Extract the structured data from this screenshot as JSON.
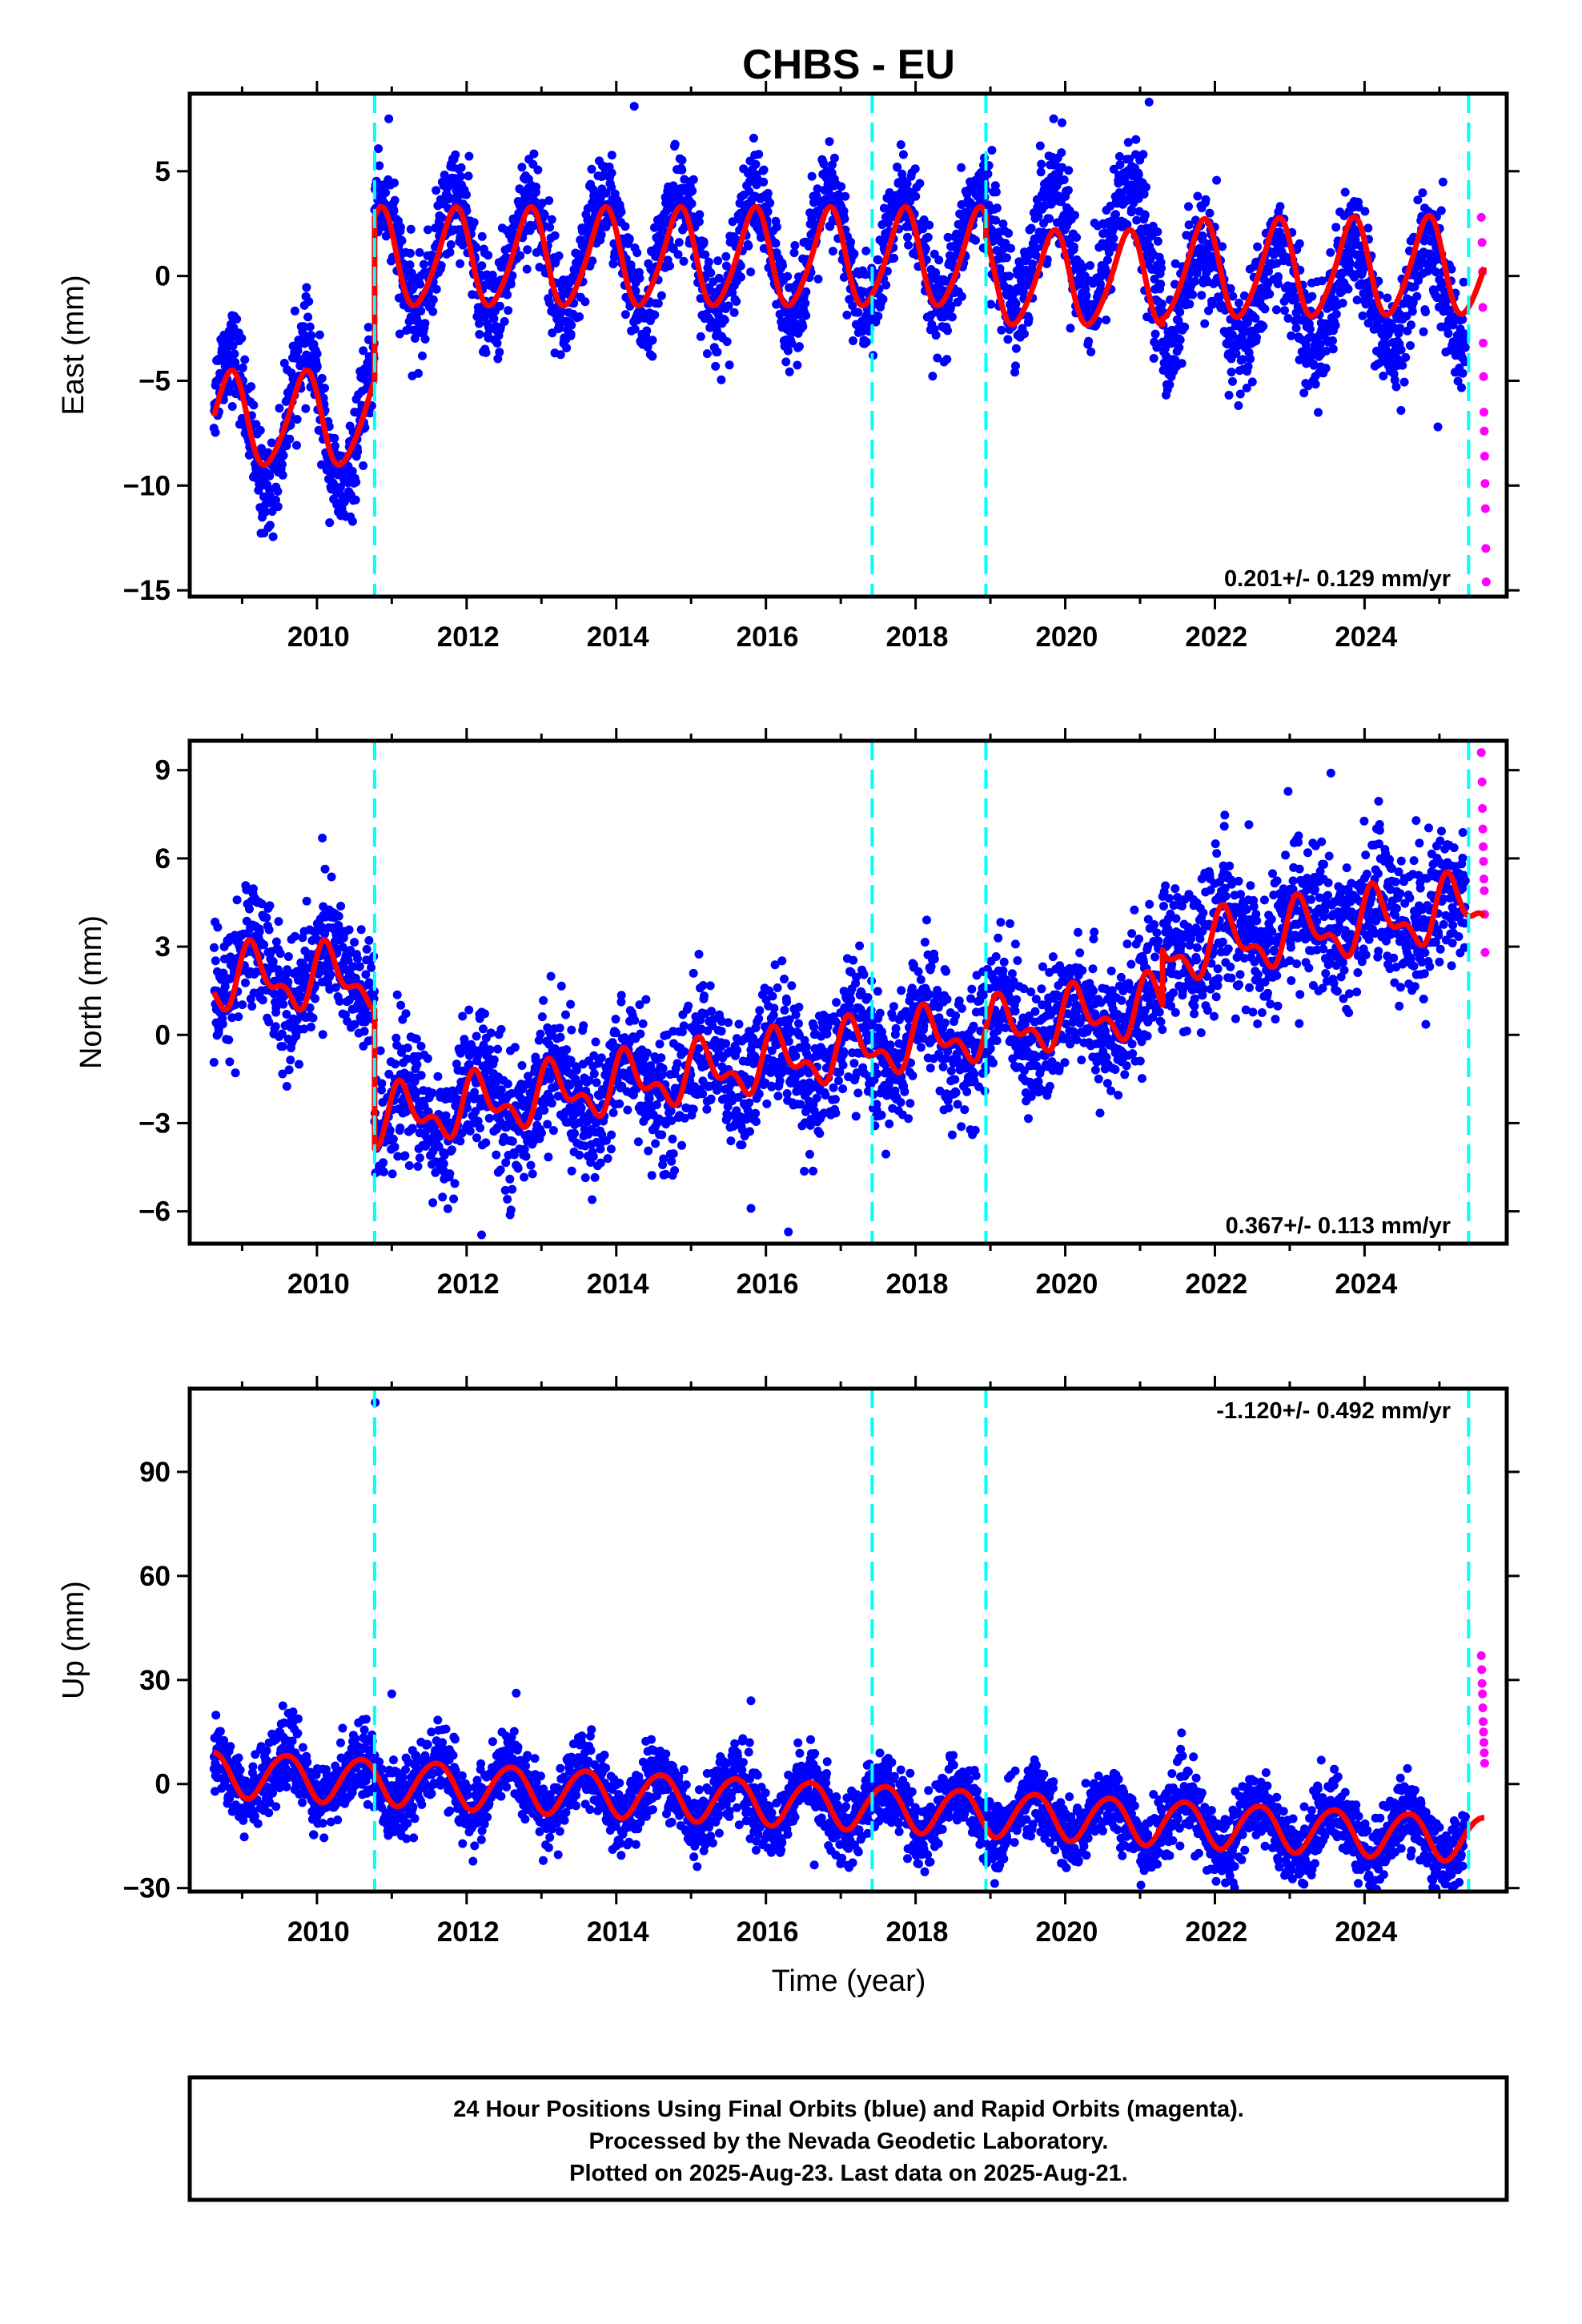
{
  "title": "CHBS - EU",
  "xlabel": "Time (year)",
  "caption": {
    "line1": "24 Hour Positions Using Final Orbits (blue) and Rapid Orbits (magenta).",
    "line2": "Processed by the Nevada Geodetic Laboratory.",
    "line3": "Plotted on 2025-Aug-23. Last data on 2025-Aug-21."
  },
  "colors": {
    "final_orbits": "#0000ff",
    "rapid_orbits": "#ff00ff",
    "model_fit": "#ff0000",
    "equipment_change": "#00ffff",
    "frame": "#000000"
  },
  "chart_data": [
    {
      "type": "scatter",
      "name": "east",
      "ylabel": "East (mm)",
      "xlim": [
        2008.3,
        2025.9
      ],
      "ylim": [
        -15.3,
        8.7
      ],
      "yticks": [
        -15,
        -10,
        -5,
        0,
        5
      ],
      "yticklabels": [
        "−15",
        "−10",
        "−5",
        "0",
        "5"
      ],
      "xticks": [
        2010,
        2012,
        2014,
        2016,
        2018,
        2020,
        2022,
        2024
      ],
      "rate_label": "0.201+/- 0.129 mm/yr",
      "rate_position": "bottom-right",
      "steps": [
        2010.77,
        2017.42,
        2018.94,
        2025.39
      ],
      "fit_segments": [
        {
          "t0": 2008.62,
          "t1": 2010.77,
          "offset": -6.9,
          "amp": 2.2,
          "phase": 2.6,
          "trend": 0.0,
          "semi": 0.3
        },
        {
          "t0": 2010.77,
          "t1": 2018.94,
          "offset": 0.8,
          "amp": 2.3,
          "phase": 2.6,
          "trend": 0.0,
          "semi": 0.3
        },
        {
          "t0": 2018.94,
          "t1": 2021.3,
          "offset": -0.2,
          "amp": 2.2,
          "phase": 2.6,
          "trend": 0.0,
          "semi": 0.3
        },
        {
          "t0": 2021.3,
          "t1": 2025.6,
          "offset": 0.2,
          "amp": 2.3,
          "phase": 2.6,
          "trend": 0.05,
          "semi": 0.3
        }
      ],
      "clusters": [
        {
          "t0": 2008.62,
          "t1": 2010.77,
          "base": -6.9,
          "amp": 3.4,
          "phase": 2.6,
          "spread": 1.1
        },
        {
          "t0": 2010.77,
          "t1": 2018.94,
          "base": 1.0,
          "amp": 2.8,
          "phase": 2.6,
          "spread": 1.2
        },
        {
          "t0": 2018.94,
          "t1": 2021.3,
          "base": 1.6,
          "amp": 2.8,
          "phase": 2.6,
          "spread": 1.3
        },
        {
          "t0": 2021.3,
          "t1": 2025.35,
          "base": -1.0,
          "amp": 2.4,
          "phase": 2.6,
          "spread": 1.3
        }
      ],
      "rapid_points": [
        [
          2025.56,
          2.8
        ],
        [
          2025.57,
          1.6
        ],
        [
          2025.575,
          0.2
        ],
        [
          2025.58,
          -1.5
        ],
        [
          2025.585,
          -3.2
        ],
        [
          2025.59,
          -4.8
        ],
        [
          2025.595,
          -6.5
        ],
        [
          2025.6,
          -7.4
        ],
        [
          2025.605,
          -8.6
        ],
        [
          2025.61,
          -9.9
        ],
        [
          2025.615,
          -11.1
        ],
        [
          2025.62,
          -13.0
        ],
        [
          2025.625,
          -14.6
        ]
      ],
      "outliers": [
        [
          2010.96,
          7.5
        ],
        [
          2014.24,
          8.1
        ],
        [
          2021.12,
          8.3
        ],
        [
          2024.98,
          -7.2
        ]
      ]
    },
    {
      "type": "scatter",
      "name": "north",
      "ylabel": "North (mm)",
      "xlim": [
        2008.3,
        2025.9
      ],
      "ylim": [
        -7.1,
        10.0
      ],
      "yticks": [
        -6,
        -3,
        0,
        3,
        6,
        9
      ],
      "yticklabels": [
        "−6",
        "−3",
        "0",
        "3",
        "6",
        "9"
      ],
      "xticks": [
        2010,
        2012,
        2014,
        2016,
        2018,
        2020,
        2022,
        2024
      ],
      "rate_label": "0.367+/- 0.113 mm/yr",
      "rate_position": "bottom-right",
      "steps": [
        2010.77,
        2017.42,
        2018.94,
        2025.39
      ],
      "fit_segments": [
        {
          "t0": 2008.62,
          "t1": 2010.77,
          "offset": 1.9,
          "amp": 0.9,
          "phase": 0.6,
          "trend": 0.0,
          "semi": 0.5
        },
        {
          "t0": 2010.77,
          "t1": 2021.3,
          "offset": -2.9,
          "amp": 0.8,
          "phase": 0.6,
          "trend": 0.37,
          "semi": 0.5
        },
        {
          "t0": 2021.3,
          "t1": 2025.6,
          "offset": 2.8,
          "amp": 0.9,
          "phase": 0.6,
          "trend": 0.37,
          "semi": 0.5
        }
      ],
      "clusters": [
        {
          "t0": 2008.62,
          "t1": 2010.77,
          "base": 2.1,
          "amp": 1.1,
          "phase": 0.6,
          "spread": 1.1,
          "trend": 0.0
        },
        {
          "t0": 2010.77,
          "t1": 2021.3,
          "base": -2.9,
          "amp": 1.0,
          "phase": 0.6,
          "spread": 1.1,
          "trend": 0.37
        },
        {
          "t0": 2021.3,
          "t1": 2025.35,
          "base": 3.0,
          "amp": 0.8,
          "phase": 0.6,
          "spread": 1.2,
          "trend": 0.37
        }
      ],
      "rapid_points": [
        [
          2025.56,
          9.6
        ],
        [
          2025.57,
          8.6
        ],
        [
          2025.575,
          7.7
        ],
        [
          2025.58,
          7.0
        ],
        [
          2025.585,
          6.4
        ],
        [
          2025.59,
          5.9
        ],
        [
          2025.595,
          5.3
        ],
        [
          2025.6,
          4.9
        ],
        [
          2025.605,
          4.1
        ],
        [
          2025.61,
          2.8
        ]
      ],
      "outliers": [
        [
          2023.55,
          8.9
        ],
        [
          2016.3,
          -6.7
        ],
        [
          2015.8,
          -5.9
        ],
        [
          2012.2,
          -6.8
        ]
      ]
    },
    {
      "type": "scatter",
      "name": "up",
      "ylabel": "Up (mm)",
      "xlim": [
        2008.3,
        2025.9
      ],
      "ylim": [
        -31,
        114
      ],
      "yticks": [
        -30,
        0,
        30,
        60,
        90
      ],
      "yticklabels": [
        "−30",
        "0",
        "30",
        "60",
        "90"
      ],
      "xticks": [
        2010,
        2012,
        2014,
        2016,
        2018,
        2020,
        2022,
        2024
      ],
      "rate_label": "-1.120+/- 0.492 mm/yr",
      "rate_position": "top-right",
      "steps": [
        2010.77,
        2017.42,
        2018.94,
        2025.39
      ],
      "fit_segments": [
        {
          "t0": 2008.62,
          "t1": 2025.6,
          "offset": 3.2,
          "amp": 6.5,
          "phase": 4.2,
          "trend": -1.12,
          "semi": 0.5
        }
      ],
      "clusters": [
        {
          "t0": 2008.62,
          "t1": 2025.35,
          "base": 3.2,
          "amp": 7.0,
          "phase": 4.2,
          "spread": 5.0,
          "trend": -1.12
        }
      ],
      "rapid_points": [
        [
          2025.56,
          37
        ],
        [
          2025.565,
          33
        ],
        [
          2025.57,
          29
        ],
        [
          2025.575,
          26
        ],
        [
          2025.58,
          22
        ],
        [
          2025.585,
          18
        ],
        [
          2025.59,
          15
        ],
        [
          2025.595,
          12
        ],
        [
          2025.6,
          9
        ],
        [
          2025.605,
          6
        ]
      ],
      "outliers": [
        [
          2010.78,
          110
        ],
        [
          2011.0,
          26
        ],
        [
          2015.8,
          24
        ],
        [
          2025.1,
          -27
        ]
      ]
    }
  ]
}
